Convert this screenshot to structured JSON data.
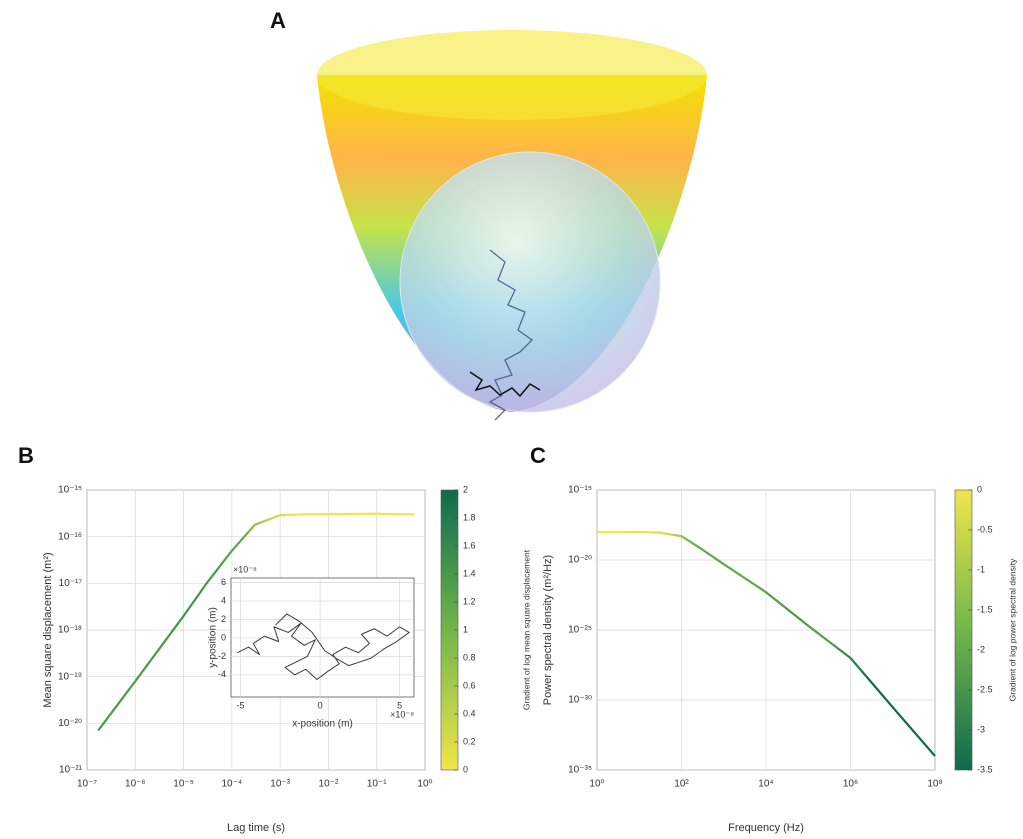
{
  "illustration": {
    "label": "A"
  },
  "chart_data": [
    {
      "type": "line",
      "panel_label": "B",
      "xlabel": "Lag time (s)",
      "ylabel": "Mean square displacement (m²)",
      "xscale": "log",
      "yscale": "log",
      "grid": true,
      "x": [
        1.7e-07,
        1e-06,
        1e-05,
        3e-05,
        0.0001,
        0.0003,
        0.001,
        0.003,
        0.01,
        0.1,
        0.6
      ],
      "values": [
        7e-21,
        8e-20,
        2e-18,
        1e-17,
        5e-17,
        1.8e-16,
        2.9e-16,
        3e-16,
        3.05e-16,
        3.1e-16,
        3e-16
      ],
      "xlim": [
        1e-07,
        1
      ],
      "ylim": [
        1e-21,
        1e-15
      ],
      "xticks": [
        {
          "value": 1e-07,
          "label": "10⁻⁷"
        },
        {
          "value": 1e-06,
          "label": "10⁻⁶"
        },
        {
          "value": 1e-05,
          "label": "10⁻⁵"
        },
        {
          "value": 0.0001,
          "label": "10⁻⁴"
        },
        {
          "value": 0.001,
          "label": "10⁻³"
        },
        {
          "value": 0.01,
          "label": "10⁻²"
        },
        {
          "value": 0.1,
          "label": "10⁻¹"
        },
        {
          "value": 1,
          "label": "10⁰"
        }
      ],
      "yticks": [
        {
          "value": 1e-21,
          "label": "10⁻²¹"
        },
        {
          "value": 1e-20,
          "label": "10⁻²⁰"
        },
        {
          "value": 1e-19,
          "label": "10⁻¹⁹"
        },
        {
          "value": 1e-18,
          "label": "10⁻¹⁸"
        },
        {
          "value": 1e-17,
          "label": "10⁻¹⁷"
        },
        {
          "value": 1e-16,
          "label": "10⁻¹⁶"
        },
        {
          "value": 1e-15,
          "label": "10⁻¹⁵"
        }
      ],
      "colorbar": {
        "label": "Gradient of log mean square displacement",
        "lim": [
          0,
          2
        ],
        "ticks": [
          0,
          0.2,
          0.4,
          0.6,
          0.8,
          1,
          1.2,
          1.4,
          1.6,
          1.8,
          2
        ],
        "colormap": [
          "#f0e64a",
          "#72b64a",
          "#0e6a4f"
        ]
      }
    },
    {
      "type": "line",
      "xlabel": "x-position (m)",
      "ylabel": "y-position (m)",
      "x_exponent": "×10⁻⁸",
      "y_exponent": "×10⁻⁸",
      "grid": true,
      "color": "#3a3a3a",
      "x": [
        -5.2e-08,
        -4.5e-08,
        -3.8e-08,
        -4.2e-08,
        -3.5e-08,
        -2.6e-08,
        -2.9e-08,
        -2e-08,
        -1.2e-08,
        -1.8e-08,
        -1e-08,
        -3e-09,
        -8e-09,
        -1.5e-08,
        -2.2e-08,
        -1.6e-08,
        -9e-09,
        -2e-09,
        5e-09,
        1.2e-08,
        8e-09,
        1.6e-08,
        2.4e-08,
        3.1e-08,
        2.6e-08,
        3.4e-08,
        4.2e-08,
        5e-08,
        5.6e-08,
        4.8e-08,
        4e-08,
        3.2e-08,
        2.5e-08,
        1.8e-08,
        1e-08,
        3e-09,
        -5e-09,
        -1.3e-08,
        -2.1e-08,
        -2.8e-08
      ],
      "values": [
        -1.6e-08,
        -1e-08,
        -1.8e-08,
        -6e-09,
        2e-09,
        -4e-09,
        1.2e-08,
        6e-09,
        1.6e-08,
        2e-09,
        -8e-09,
        -2e-09,
        -2e-08,
        -2.6e-08,
        -3.2e-08,
        -4e-08,
        -3.4e-08,
        -4.5e-08,
        -3.6e-08,
        -2.8e-08,
        -1.8e-08,
        -1e-08,
        -1.6e-08,
        -6e-09,
        4e-09,
        1e-08,
        2e-09,
        1.2e-08,
        6e-09,
        -4e-09,
        -1.2e-08,
        -2.2e-08,
        -2.6e-08,
        -3e-08,
        -2.2e-08,
        -1.4e-08,
        6e-09,
        1.8e-08,
        2.6e-08,
        1.4e-08
      ],
      "xlim": [
        -5.6e-08,
        5.9e-08
      ],
      "ylim": [
        -6.4e-08,
        6.5e-08
      ],
      "xticks": [
        {
          "value": -5e-08,
          "label": "-5"
        },
        {
          "value": 0,
          "label": "0"
        },
        {
          "value": 5e-08,
          "label": "5"
        }
      ],
      "yticks": [
        {
          "value": -4e-08,
          "label": "-4"
        },
        {
          "value": -2e-08,
          "label": "-2"
        },
        {
          "value": 0,
          "label": "0"
        },
        {
          "value": 2e-08,
          "label": "2"
        },
        {
          "value": 4e-08,
          "label": "4"
        },
        {
          "value": 6e-08,
          "label": "6"
        }
      ]
    },
    {
      "type": "line",
      "panel_label": "C",
      "xlabel": "Frequency (Hz)",
      "ylabel": "Power spectral density (m²/Hz)",
      "xscale": "log",
      "yscale": "log",
      "grid": true,
      "x": [
        1,
        10,
        30,
        100,
        300,
        1000.0,
        10000.0,
        100000.0,
        1000000.0,
        10000000.0,
        100000000.0
      ],
      "values": [
        1e-18,
        1e-18,
        9e-19,
        5e-19,
        6e-20,
        5e-21,
        5e-23,
        2e-25,
        1e-27,
        3e-31,
        1e-34
      ],
      "xlim": [
        1,
        100000000.0
      ],
      "ylim": [
        1e-35,
        1e-15
      ],
      "xticks": [
        {
          "value": 1,
          "label": "10⁰"
        },
        {
          "value": 100,
          "label": "10²"
        },
        {
          "value": 10000.0,
          "label": "10⁴"
        },
        {
          "value": 1000000.0,
          "label": "10⁶"
        },
        {
          "value": 100000000.0,
          "label": "10⁸"
        }
      ],
      "yticks": [
        {
          "value": 1e-35,
          "label": "10⁻³⁵"
        },
        {
          "value": 1e-30,
          "label": "10⁻³⁰"
        },
        {
          "value": 1e-25,
          "label": "10⁻²⁵"
        },
        {
          "value": 1e-20,
          "label": "10⁻²⁰"
        },
        {
          "value": 1e-15,
          "label": "10⁻¹⁵"
        }
      ],
      "colorbar": {
        "label": "Gradient of log power spectral density",
        "lim": [
          -3.5,
          0
        ],
        "ticks": [
          -3.5,
          -3,
          -2.5,
          -2,
          -1.5,
          -1,
          -0.5,
          0
        ],
        "colormap": [
          "#0e6a4f",
          "#72b64a",
          "#f0e64a"
        ]
      }
    }
  ]
}
